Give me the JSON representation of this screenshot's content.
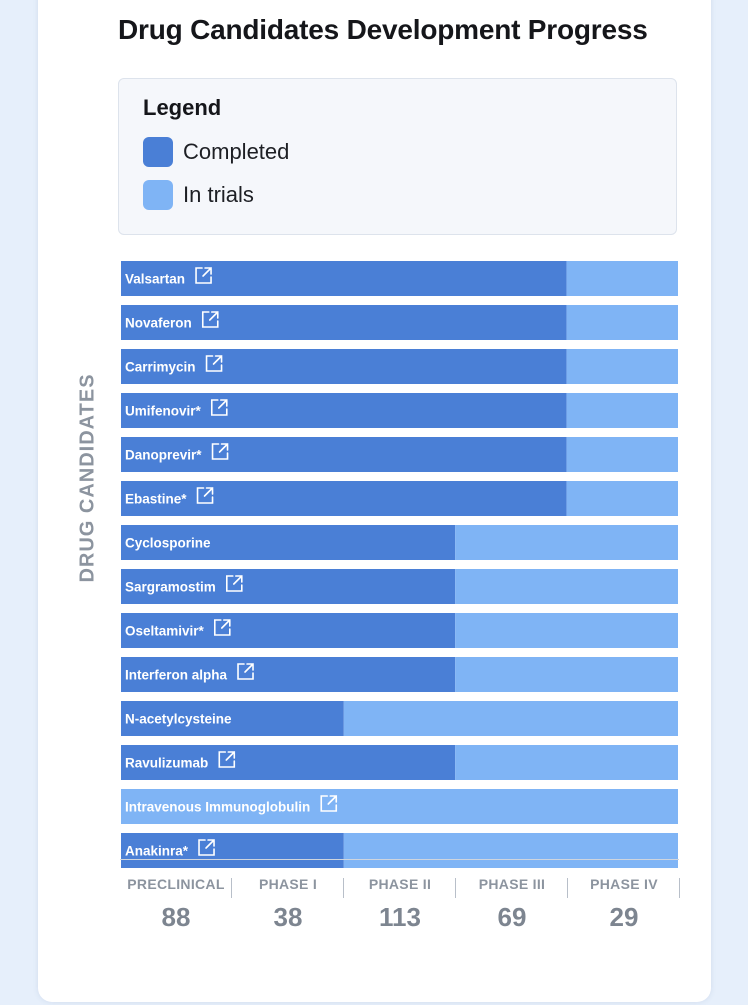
{
  "title": "Drug Candidates Development Progress",
  "legend": {
    "title": "Legend",
    "items": [
      {
        "label": "Completed",
        "color": "#4a7fd6"
      },
      {
        "label": "In trials",
        "color": "#7fb4f5"
      }
    ]
  },
  "yaxis_label": "DRUG CANDIDATES",
  "chart_data": {
    "type": "bar",
    "orientation": "horizontal",
    "stacked": true,
    "xlim": [
      0,
      5
    ],
    "categories": [
      "Valsartan",
      "Novaferon",
      "Carrimycin",
      "Umifenovir*",
      "Danoprevir*",
      "Ebastine*",
      "Cyclosporine",
      "Sargramostim",
      "Oseltamivir*",
      "Interferon alpha",
      "N-acetylcysteine",
      "Ravulizumab",
      "Intravenous Immunoglobulin",
      "Anakinra*"
    ],
    "link_icon": [
      true,
      true,
      true,
      true,
      true,
      true,
      false,
      true,
      true,
      true,
      false,
      true,
      true,
      true
    ],
    "series": [
      {
        "name": "Completed",
        "color": "#4a7fd6",
        "values": [
          4,
          4,
          4,
          4,
          4,
          4,
          3,
          3,
          3,
          3,
          2,
          3,
          0,
          2
        ]
      },
      {
        "name": "In trials",
        "color": "#7fb4f5",
        "values": [
          1,
          1,
          1,
          1,
          1,
          1,
          2,
          2,
          2,
          2,
          3,
          2,
          5,
          3
        ]
      }
    ],
    "phases": [
      {
        "name": "PRECLINICAL",
        "count": "88"
      },
      {
        "name": "PHASE I",
        "count": "38"
      },
      {
        "name": "PHASE II",
        "count": "113"
      },
      {
        "name": "PHASE III",
        "count": "69"
      },
      {
        "name": "PHASE IV",
        "count": "29"
      }
    ]
  }
}
